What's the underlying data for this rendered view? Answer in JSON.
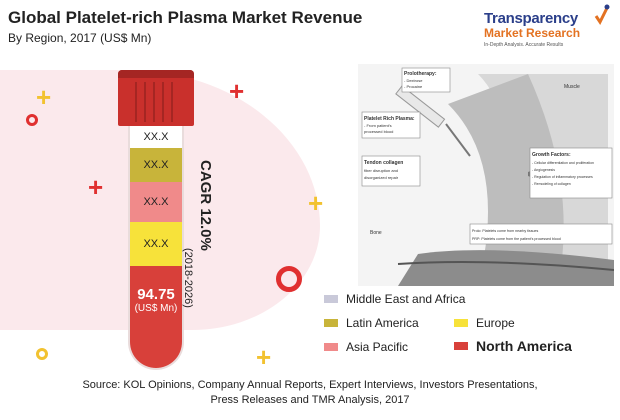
{
  "title": "Global Platelet-rich Plasma Market Revenue",
  "subtitle": "By Region, 2017 (US$ Mn)",
  "logo": {
    "main": "Transparency",
    "sub": "Market Research",
    "tagline": "In-Depth Analysis. Accurate Results"
  },
  "cagr": {
    "label": "CAGR 12.0%",
    "period": "(2018-2026)"
  },
  "illustration": {
    "labels": {
      "prolotherapy": "Prolotherapy:",
      "prolotherapy_items": [
        "- Dextrose",
        "- Procaine"
      ],
      "prp": "Platelet Rich Plasma:",
      "prp_items": [
        "- From patient's",
        "processed blood"
      ],
      "tendon": "Tendon collagen",
      "tendon_items": [
        "fiber disruption and",
        "disorganized repair"
      ],
      "muscle": "Muscle",
      "growth": "Growth Factors:",
      "growth_items": [
        "- Cellular differentiation and proliferation",
        "- Angiogenesis",
        "- Regulation of inflammatory processes",
        "- Remodeling of collagen"
      ],
      "bone": "Bone",
      "prolo_note": "Prolo: Platelets come from nearby tissues",
      "prp_note": "PRP: Platelets come from the patient's processed blood"
    }
  },
  "chart_data": {
    "type": "bar",
    "title": "Global Platelet-rich Plasma Market Revenue",
    "subtitle": "By Region, 2017 (US$ Mn)",
    "unit": "(US$ Mn)",
    "categories": [
      "Middle East and Africa",
      "Latin America",
      "Europe",
      "Asia Pacific",
      "North America"
    ],
    "series": [
      {
        "values": [
          "XX.X",
          "XX.X",
          "XX.X",
          "XX.X",
          94.75
        ]
      }
    ],
    "cagr": "CAGR 12.0%",
    "cagr_period": "(2018-2026)",
    "legend": {
      "placement": "bottom-right",
      "entries": [
        {
          "label": "Middle East and Africa",
          "color": "#c9c9d9"
        },
        {
          "label": "Latin America",
          "color": "#c8b43a"
        },
        {
          "label": "Europe",
          "color": "#f7e23a"
        },
        {
          "label": "Asia Pacific",
          "color": "#f08a8a"
        },
        {
          "label": "North America",
          "color": "#d8403a"
        }
      ]
    }
  },
  "source": {
    "line1": "Source: KOL Opinions, Company Annual Reports, Expert Interviews, Investors Presentations,",
    "line2": "Press Releases and TMR Analysis, 2017"
  }
}
